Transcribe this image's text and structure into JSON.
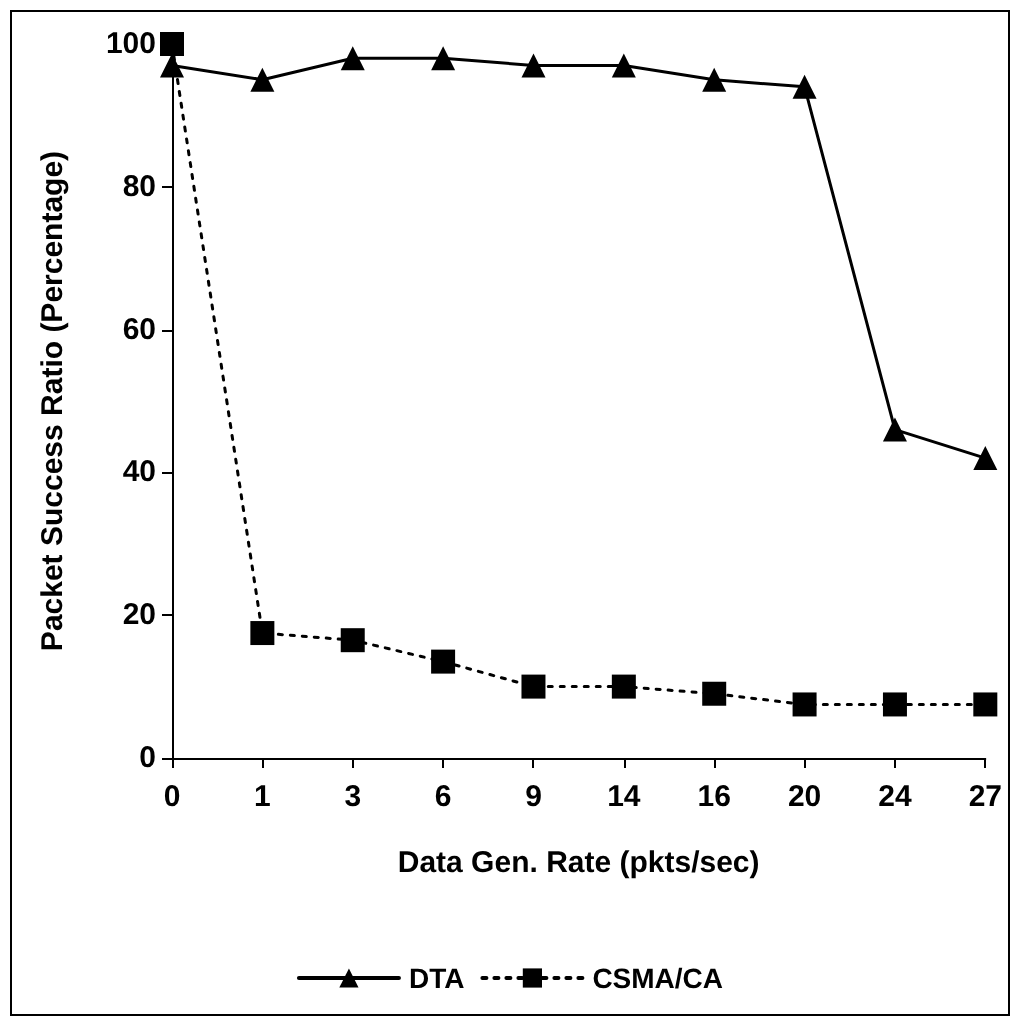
{
  "chart_data": {
    "type": "line",
    "xlabel": "Data Gen. Rate (pkts/sec)",
    "ylabel": "Packet Success Ratio (Percentage)",
    "categories": [
      "0",
      "1",
      "3",
      "6",
      "9",
      "14",
      "16",
      "20",
      "24",
      "27"
    ],
    "series": [
      {
        "name": "DTA",
        "color": "#000000",
        "marker": "triangle",
        "line_style": "solid",
        "values": [
          97,
          95,
          98,
          98,
          97,
          97,
          95,
          94,
          46,
          42
        ]
      },
      {
        "name": "CSMA/CA",
        "color": "#000000",
        "marker": "square",
        "line_style": "dotted",
        "values": [
          100,
          17.5,
          16.5,
          13.5,
          10,
          10,
          9,
          7.5,
          7.5,
          7.5
        ]
      }
    ],
    "ylim": [
      0,
      100
    ],
    "yticks": [
      0,
      20,
      40,
      60,
      80,
      100
    ],
    "grid": false,
    "legend": "bottom"
  }
}
